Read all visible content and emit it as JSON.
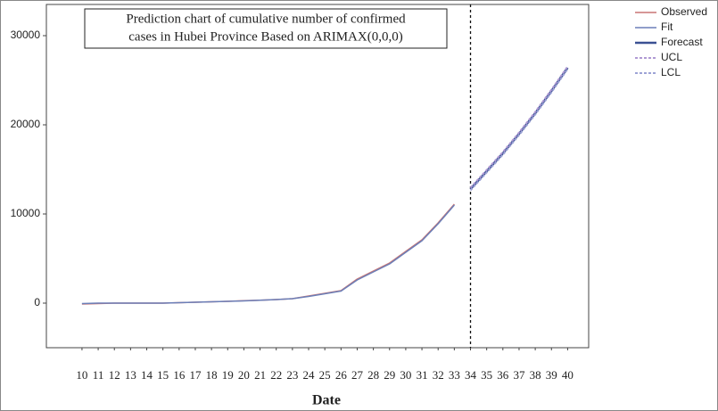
{
  "chart_data": {
    "type": "line",
    "title_lines": [
      "Prediction chart of cumulative number of confirmed",
      "cases in Hubei Province Based on ARIMAX(0,0,0)"
    ],
    "x_label": "Date",
    "x": [
      10,
      11,
      12,
      13,
      14,
      15,
      16,
      17,
      18,
      19,
      20,
      21,
      22,
      23,
      24,
      25,
      26,
      27,
      28,
      29,
      30,
      31,
      32,
      33,
      34,
      35,
      36,
      37,
      38,
      39,
      40
    ],
    "xlim": [
      7.8,
      41.3
    ],
    "xticks": [
      10,
      11,
      12,
      13,
      14,
      15,
      16,
      17,
      18,
      19,
      20,
      21,
      22,
      23,
      24,
      25,
      26,
      27,
      28,
      29,
      30,
      31,
      32,
      33,
      34,
      35,
      36,
      37,
      38,
      39,
      40
    ],
    "ylim": [
      -5000,
      33500
    ],
    "yticks": [
      0,
      10000,
      20000,
      30000
    ],
    "vline": 34,
    "series": [
      {
        "name": "Observed",
        "color": "#c97575",
        "line_width": 1.5,
        "dashed": false,
        "values": [
          -100,
          -50,
          0,
          0,
          0,
          0,
          50,
          100,
          150,
          200,
          270,
          330,
          400,
          500,
          800,
          1100,
          1400,
          2700,
          3600,
          4500,
          5800,
          7100,
          9000,
          11100,
          null,
          null,
          null,
          null,
          null,
          null,
          null
        ]
      },
      {
        "name": "Fit",
        "color": "#6b7fb8",
        "line_width": 1.5,
        "dashed": false,
        "values": [
          -50,
          0,
          0,
          0,
          0,
          0,
          50,
          100,
          150,
          200,
          250,
          330,
          400,
          500,
          750,
          1050,
          1350,
          2600,
          3500,
          4400,
          5700,
          7000,
          8900,
          11000,
          null,
          null,
          null,
          null,
          null,
          null,
          null
        ]
      },
      {
        "name": "Forecast",
        "color": "#3b5193",
        "line_width": 2.5,
        "dashed": false,
        "values": [
          null,
          null,
          null,
          null,
          null,
          null,
          null,
          null,
          null,
          null,
          null,
          null,
          null,
          null,
          null,
          null,
          null,
          null,
          null,
          null,
          null,
          null,
          null,
          null,
          12800,
          14800,
          16800,
          19000,
          21300,
          23800,
          26400
        ]
      },
      {
        "name": "UCL",
        "color": "#b09ad4",
        "line_width": 2,
        "dashed": true,
        "values": [
          null,
          null,
          null,
          null,
          null,
          null,
          null,
          null,
          null,
          null,
          null,
          null,
          null,
          null,
          null,
          null,
          null,
          null,
          null,
          null,
          null,
          null,
          null,
          null,
          12950,
          14950,
          16950,
          19150,
          21450,
          23950,
          26550
        ]
      },
      {
        "name": "LCL",
        "color": "#9da3d6",
        "line_width": 2,
        "dashed": true,
        "values": [
          null,
          null,
          null,
          null,
          null,
          null,
          null,
          null,
          null,
          null,
          null,
          null,
          null,
          null,
          null,
          null,
          null,
          null,
          null,
          null,
          null,
          null,
          null,
          null,
          12650,
          14650,
          16650,
          18850,
          21150,
          23650,
          26250
        ]
      }
    ]
  }
}
